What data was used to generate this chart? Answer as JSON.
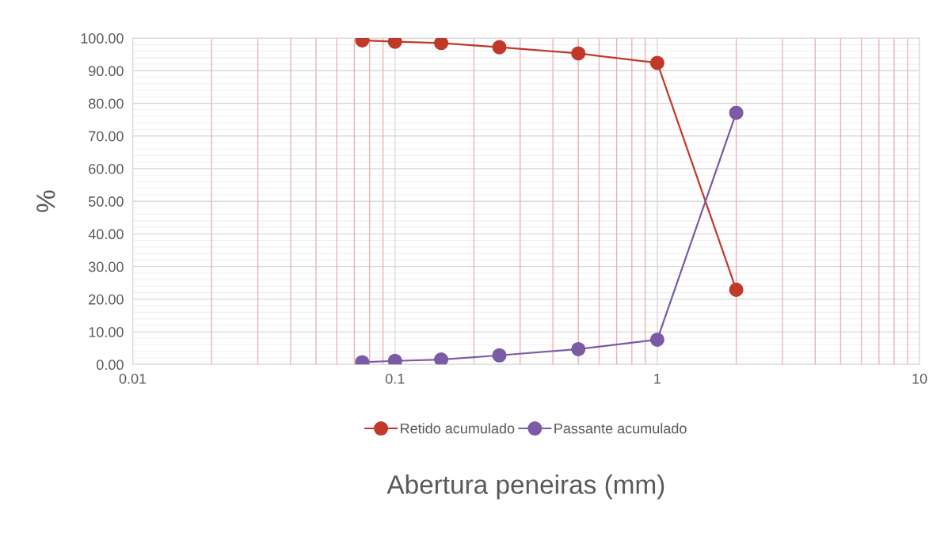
{
  "chart_data": {
    "type": "line",
    "xlabel": "Abertura peneiras (mm)",
    "ylabel": "%",
    "x": [
      0.075,
      0.1,
      0.15,
      0.25,
      0.5,
      1,
      2
    ],
    "series": [
      {
        "name": "Retido acumulado",
        "color": "#c0392b",
        "values": [
          99.3,
          98.9,
          98.5,
          97.2,
          95.3,
          92.4,
          22.9
        ]
      },
      {
        "name": "Passante acumulado",
        "color": "#7b5aa6",
        "values": [
          0.7,
          1.1,
          1.5,
          2.8,
          4.7,
          7.6,
          77.1
        ]
      }
    ],
    "log": "x",
    "xlim": [
      0.01,
      10
    ],
    "xticks": [
      0.01,
      {
        "value": 0.02,
        "label": null
      },
      {
        "value": 0.03,
        "label": null
      },
      {
        "value": 0.04,
        "label": null
      },
      {
        "value": 0.05,
        "label": null
      },
      {
        "value": 0.06,
        "label": null
      },
      {
        "value": 0.07,
        "label": null
      },
      {
        "value": 0.08,
        "label": null
      },
      {
        "value": 0.09,
        "label": null
      },
      0.1,
      {
        "value": 0.2,
        "label": null
      },
      {
        "value": 0.3,
        "label": null
      },
      {
        "value": 0.4,
        "label": null
      },
      {
        "value": 0.5,
        "label": null
      },
      {
        "value": 0.6,
        "label": null
      },
      {
        "value": 0.7,
        "label": null
      },
      {
        "value": 0.8,
        "label": null
      },
      {
        "value": 0.9,
        "label": null
      },
      1,
      {
        "value": 2,
        "label": null
      },
      {
        "value": 3,
        "label": null
      },
      {
        "value": 4,
        "label": null
      },
      {
        "value": 5,
        "label": null
      },
      {
        "value": 6,
        "label": null
      },
      {
        "value": 7,
        "label": null
      },
      {
        "value": 8,
        "label": null
      },
      {
        "value": 9,
        "label": null
      },
      10
    ],
    "ylim": [
      0,
      100
    ],
    "yticks": [
      {
        "value": 0,
        "label": "0.00"
      },
      {
        "value": 2,
        "label": null
      },
      {
        "value": 4,
        "label": null
      },
      {
        "value": 6,
        "label": null
      },
      {
        "value": 8,
        "label": null
      },
      {
        "value": 10,
        "label": "10.00"
      },
      {
        "value": 12,
        "label": null
      },
      {
        "value": 14,
        "label": null
      },
      {
        "value": 16,
        "label": null
      },
      {
        "value": 18,
        "label": null
      },
      {
        "value": 20,
        "label": "20.00"
      },
      {
        "value": 22,
        "label": null
      },
      {
        "value": 24,
        "label": null
      },
      {
        "value": 26,
        "label": null
      },
      {
        "value": 28,
        "label": null
      },
      {
        "value": 30,
        "label": "30.00"
      },
      {
        "value": 32,
        "label": null
      },
      {
        "value": 34,
        "label": null
      },
      {
        "value": 36,
        "label": null
      },
      {
        "value": 38,
        "label": null
      },
      {
        "value": 40,
        "label": "40.00"
      },
      {
        "value": 42,
        "label": null
      },
      {
        "value": 44,
        "label": null
      },
      {
        "value": 46,
        "label": null
      },
      {
        "value": 48,
        "label": null
      },
      {
        "value": 50,
        "label": "50.00"
      },
      {
        "value": 52,
        "label": null
      },
      {
        "value": 54,
        "label": null
      },
      {
        "value": 56,
        "label": null
      },
      {
        "value": 58,
        "label": null
      },
      {
        "value": 60,
        "label": "60.00"
      },
      {
        "value": 62,
        "label": null
      },
      {
        "value": 64,
        "label": null
      },
      {
        "value": 66,
        "label": null
      },
      {
        "value": 68,
        "label": null
      },
      {
        "value": 70,
        "label": "70.00"
      },
      {
        "value": 72,
        "label": null
      },
      {
        "value": 74,
        "label": null
      },
      {
        "value": 76,
        "label": null
      },
      {
        "value": 78,
        "label": null
      },
      {
        "value": 80,
        "label": "80.00"
      },
      {
        "value": 82,
        "label": null
      },
      {
        "value": 84,
        "label": null
      },
      {
        "value": 86,
        "label": null
      },
      {
        "value": 88,
        "label": null
      },
      {
        "value": 90,
        "label": "90.00"
      },
      {
        "value": 92,
        "label": null
      },
      {
        "value": 94,
        "label": null
      },
      {
        "value": 96,
        "label": null
      },
      {
        "value": 98,
        "label": null
      },
      {
        "value": 100,
        "label": "100.00"
      }
    ],
    "grid": true,
    "legend": "bottom",
    "marker": "circle",
    "line_style": "solid"
  }
}
